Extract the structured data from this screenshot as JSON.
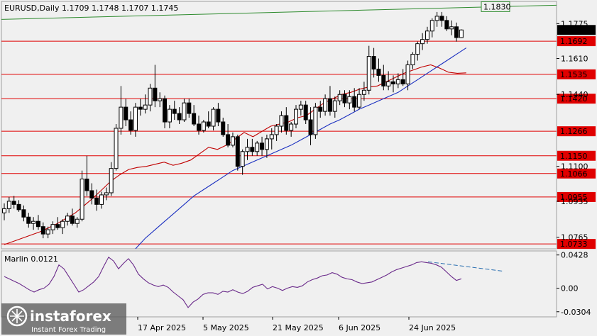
{
  "chart_data": [
    {
      "type": "candlestick",
      "title": "EURUSD,Daily",
      "ohlc_readout": [
        "1.1709",
        "1.1748",
        "1.1707",
        "1.1745"
      ],
      "ylim": [
        1.071,
        1.188
      ],
      "price_ticks": [
        {
          "v": 1.1775,
          "label": "1.1775"
        },
        {
          "v": 1.161,
          "label": "1.1610"
        },
        {
          "v": 1.144,
          "label": "1.1440"
        },
        {
          "v": 1.11,
          "label": "1.1100"
        },
        {
          "v": 1.0935,
          "label": "1.0935"
        },
        {
          "v": 1.0765,
          "label": "1.0765"
        }
      ],
      "current_price": {
        "v": 1.1745,
        "label": "1.1745"
      },
      "levels": [
        {
          "v": 1.1692,
          "label": "1.1692"
        },
        {
          "v": 1.1535,
          "label": "1.1535"
        },
        {
          "v": 1.142,
          "label": "1.1420"
        },
        {
          "v": 1.1266,
          "label": "1.1266"
        },
        {
          "v": 1.115,
          "label": "1.1150"
        },
        {
          "v": 1.1066,
          "label": "1.1066"
        },
        {
          "v": 1.0955,
          "label": "1.0955"
        },
        {
          "v": 1.0733,
          "label": "1.0733"
        }
      ],
      "green_trendline": {
        "start": 1.1795,
        "end": 1.1862,
        "label": "1.1830"
      },
      "x_labels": [
        "17 Apr 2025",
        "5 May 2025",
        "21 May 2025",
        "6 Jun 2025",
        "24 Jun 2025"
      ],
      "candles": [
        [
          1.088,
          1.0925,
          1.0845,
          1.09
        ],
        [
          1.09,
          1.0955,
          1.088,
          1.0935
        ],
        [
          1.0935,
          1.096,
          1.09,
          1.092
        ],
        [
          1.092,
          1.094,
          1.0885,
          1.0895
        ],
        [
          1.0895,
          1.0915,
          1.084,
          1.086
        ],
        [
          1.086,
          1.088,
          1.081,
          1.083
        ],
        [
          1.083,
          1.086,
          1.08,
          1.084
        ],
        [
          1.084,
          1.087,
          1.08,
          1.0815
        ],
        [
          1.0815,
          1.0835,
          1.076,
          1.078
        ],
        [
          1.078,
          1.0815,
          1.076,
          1.08
        ],
        [
          1.08,
          1.084,
          1.078,
          1.0825
        ],
        [
          1.0825,
          1.086,
          1.08,
          1.081
        ],
        [
          1.081,
          1.085,
          1.078,
          1.084
        ],
        [
          1.084,
          1.088,
          1.082,
          1.0865
        ],
        [
          1.0865,
          1.09,
          1.082,
          1.083
        ],
        [
          1.083,
          1.086,
          1.081,
          1.085
        ],
        [
          1.085,
          1.108,
          1.084,
          1.104
        ],
        [
          1.104,
          1.115,
          1.096,
          1.0985
        ],
        [
          1.0985,
          1.102,
          1.092,
          1.095
        ],
        [
          1.095,
          1.099,
          1.089,
          1.092
        ],
        [
          1.092,
          1.098,
          1.09,
          1.0965
        ],
        [
          1.0965,
          1.1,
          1.094,
          1.0975
        ],
        [
          1.0975,
          1.112,
          1.096,
          1.109
        ],
        [
          1.109,
          1.13,
          1.108,
          1.128
        ],
        [
          1.128,
          1.148,
          1.125,
          1.138
        ],
        [
          1.138,
          1.142,
          1.129,
          1.132
        ],
        [
          1.132,
          1.136,
          1.125,
          1.127
        ],
        [
          1.127,
          1.14,
          1.124,
          1.138
        ],
        [
          1.138,
          1.142,
          1.134,
          1.137
        ],
        [
          1.137,
          1.144,
          1.135,
          1.139
        ],
        [
          1.139,
          1.149,
          1.136,
          1.147
        ],
        [
          1.147,
          1.158,
          1.138,
          1.141
        ],
        [
          1.141,
          1.145,
          1.138,
          1.142
        ],
        [
          1.142,
          1.1435,
          1.128,
          1.131
        ],
        [
          1.131,
          1.139,
          1.128,
          1.137
        ],
        [
          1.137,
          1.141,
          1.132,
          1.135
        ],
        [
          1.135,
          1.138,
          1.13,
          1.132
        ],
        [
          1.132,
          1.142,
          1.131,
          1.14
        ],
        [
          1.14,
          1.142,
          1.133,
          1.135
        ],
        [
          1.135,
          1.139,
          1.129,
          1.13
        ],
        [
          1.13,
          1.134,
          1.125,
          1.127
        ],
        [
          1.127,
          1.132,
          1.126,
          1.131
        ],
        [
          1.131,
          1.136,
          1.128,
          1.129
        ],
        [
          1.129,
          1.138,
          1.127,
          1.137
        ],
        [
          1.137,
          1.14,
          1.129,
          1.131
        ],
        [
          1.131,
          1.133,
          1.124,
          1.125
        ],
        [
          1.125,
          1.13,
          1.119,
          1.12
        ],
        [
          1.12,
          1.126,
          1.119,
          1.124
        ],
        [
          1.124,
          1.125,
          1.108,
          1.11
        ],
        [
          1.11,
          1.118,
          1.106,
          1.117
        ],
        [
          1.117,
          1.123,
          1.113,
          1.119
        ],
        [
          1.119,
          1.123,
          1.115,
          1.117
        ],
        [
          1.117,
          1.122,
          1.115,
          1.121
        ],
        [
          1.121,
          1.124,
          1.115,
          1.118
        ],
        [
          1.118,
          1.125,
          1.114,
          1.123
        ],
        [
          1.123,
          1.128,
          1.118,
          1.125
        ],
        [
          1.125,
          1.13,
          1.122,
          1.129
        ],
        [
          1.129,
          1.136,
          1.126,
          1.134
        ],
        [
          1.134,
          1.138,
          1.125,
          1.127
        ],
        [
          1.127,
          1.131,
          1.124,
          1.13
        ],
        [
          1.13,
          1.139,
          1.128,
          1.137
        ],
        [
          1.137,
          1.141,
          1.134,
          1.139
        ],
        [
          1.139,
          1.141,
          1.13,
          1.132
        ],
        [
          1.132,
          1.138,
          1.12,
          1.125
        ],
        [
          1.125,
          1.14,
          1.123,
          1.138
        ],
        [
          1.138,
          1.141,
          1.133,
          1.136
        ],
        [
          1.136,
          1.144,
          1.134,
          1.142
        ],
        [
          1.142,
          1.148,
          1.134,
          1.136
        ],
        [
          1.136,
          1.143,
          1.133,
          1.141
        ],
        [
          1.141,
          1.146,
          1.139,
          1.144
        ],
        [
          1.144,
          1.146,
          1.138,
          1.14
        ],
        [
          1.14,
          1.146,
          1.137,
          1.143
        ],
        [
          1.143,
          1.147,
          1.136,
          1.138
        ],
        [
          1.138,
          1.147,
          1.137,
          1.144
        ],
        [
          1.144,
          1.15,
          1.141,
          1.146
        ],
        [
          1.146,
          1.167,
          1.144,
          1.162
        ],
        [
          1.162,
          1.166,
          1.152,
          1.156
        ],
        [
          1.156,
          1.161,
          1.15,
          1.153
        ],
        [
          1.153,
          1.158,
          1.146,
          1.148
        ],
        [
          1.148,
          1.155,
          1.146,
          1.15
        ],
        [
          1.15,
          1.153,
          1.145,
          1.149
        ],
        [
          1.149,
          1.154,
          1.147,
          1.151
        ],
        [
          1.151,
          1.156,
          1.148,
          1.149
        ],
        [
          1.149,
          1.16,
          1.146,
          1.158
        ],
        [
          1.158,
          1.164,
          1.156,
          1.163
        ],
        [
          1.163,
          1.169,
          1.16,
          1.168
        ],
        [
          1.168,
          1.173,
          1.165,
          1.17
        ],
        [
          1.17,
          1.176,
          1.168,
          1.174
        ],
        [
          1.174,
          1.18,
          1.171,
          1.179
        ],
        [
          1.179,
          1.183,
          1.176,
          1.181
        ],
        [
          1.181,
          1.183,
          1.176,
          1.179
        ],
        [
          1.179,
          1.181,
          1.174,
          1.175
        ],
        [
          1.175,
          1.179,
          1.172,
          1.176
        ],
        [
          1.176,
          1.178,
          1.169,
          1.1709
        ],
        [
          1.1709,
          1.1748,
          1.1707,
          1.1745
        ]
      ],
      "series": [
        {
          "kind": "ma-red",
          "values": [
            1.073,
            1.0745,
            1.076,
            1.0775,
            1.079,
            1.081,
            1.083,
            1.0855,
            1.088,
            1.0915,
            1.095,
            1.099,
            1.103,
            1.106,
            1.1085,
            1.1095,
            1.11,
            1.111,
            1.112,
            1.1105,
            1.1115,
            1.113,
            1.116,
            1.119,
            1.118,
            1.12,
            1.123,
            1.126,
            1.124,
            1.1265,
            1.129,
            1.13,
            1.131,
            1.133,
            1.134,
            1.137,
            1.14,
            1.142,
            1.144,
            1.145,
            1.1465,
            1.1475,
            1.148,
            1.15,
            1.152,
            1.154,
            1.1555,
            1.157,
            1.158,
            1.1565,
            1.1545,
            1.154,
            1.1542
          ]
        },
        {
          "kind": "ma-blue",
          "values": [
            1.071,
            1.076,
            1.08,
            1.084,
            1.088,
            1.092,
            1.096,
            1.099,
            1.102,
            1.105,
            1.108,
            1.11,
            1.112,
            1.114,
            1.116,
            1.118,
            1.12,
            1.1225,
            1.125,
            1.1275,
            1.13,
            1.132,
            1.1345,
            1.137,
            1.139,
            1.141,
            1.143,
            1.145,
            1.148,
            1.151,
            1.154,
            1.157,
            1.16,
            1.163,
            1.166
          ]
        }
      ]
    },
    {
      "type": "line",
      "title": "Marlin 0.0121",
      "ylim": [
        -0.037,
        0.048
      ],
      "y_ticks": [
        {
          "v": 0.0428,
          "label": "0.0428"
        },
        {
          "v": 0.0,
          "label": "0.00"
        },
        {
          "v": -0.0304,
          "label": "-0.0304"
        }
      ],
      "values": [
        0.015,
        0.012,
        0.009,
        0.006,
        0.002,
        -0.002,
        -0.005,
        -0.002,
        0.0,
        0.005,
        0.015,
        0.03,
        0.025,
        0.015,
        0.005,
        -0.005,
        -0.002,
        0.003,
        0.008,
        0.015,
        0.028,
        0.04,
        0.035,
        0.025,
        0.032,
        0.038,
        0.03,
        0.018,
        0.012,
        0.007,
        0.004,
        0.002,
        0.004,
        0.001,
        -0.005,
        -0.01,
        -0.015,
        -0.025,
        -0.018,
        -0.014,
        -0.008,
        -0.006,
        -0.006,
        -0.008,
        -0.004,
        -0.005,
        -0.002,
        -0.005,
        -0.007,
        -0.004,
        0.001,
        0.003,
        0.005,
        -0.001,
        0.002,
        0.0,
        -0.003,
        0.0,
        0.002,
        0.001,
        0.003,
        0.008,
        0.011,
        0.013,
        0.016,
        0.017,
        0.02,
        0.018,
        0.014,
        0.012,
        0.011,
        0.008,
        0.006,
        0.007,
        0.008,
        0.011,
        0.014,
        0.017,
        0.021,
        0.024,
        0.026,
        0.028,
        0.03,
        0.033,
        0.034,
        0.033,
        0.032,
        0.03,
        0.027,
        0.021,
        0.015,
        0.01,
        0.0121
      ],
      "divergence_line": [
        0.034,
        0.022
      ]
    }
  ],
  "watermark": {
    "brand": "instaforex",
    "tagline": "Instant Forex Trading"
  }
}
